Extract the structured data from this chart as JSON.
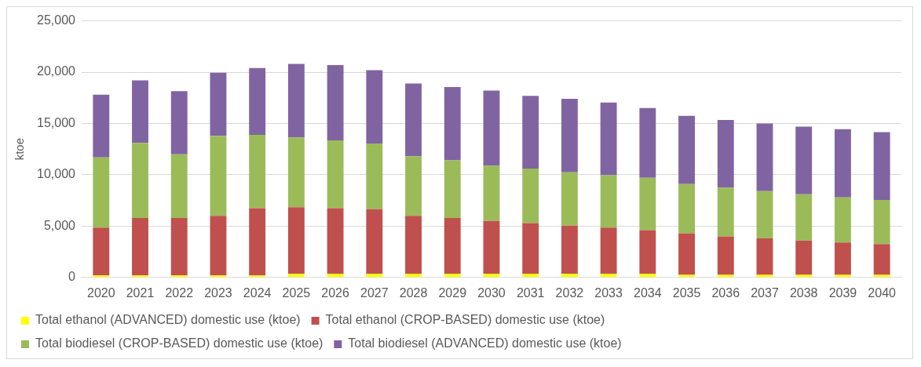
{
  "chart_data": {
    "type": "bar",
    "stacked": true,
    "ylabel": "ktoe",
    "categories": [
      "2020",
      "2021",
      "2022",
      "2023",
      "2024",
      "2025",
      "2026",
      "2027",
      "2028",
      "2029",
      "2030",
      "2031",
      "2032",
      "2033",
      "2034",
      "2035",
      "2036",
      "2037",
      "2038",
      "2039",
      "2040"
    ],
    "series": [
      {
        "name": "Total ethanol (ADVANCED) domestic use (ktoe)",
        "color": "#ffff00",
        "values": [
          200,
          200,
          200,
          200,
          200,
          350,
          350,
          350,
          350,
          350,
          350,
          350,
          350,
          350,
          350,
          250,
          250,
          250,
          250,
          250,
          250
        ]
      },
      {
        "name": "Total ethanol (CROP-BASED) domestic use (ktoe)",
        "color": "#c0504d",
        "values": [
          4650,
          5600,
          5600,
          5800,
          6550,
          6500,
          6400,
          6300,
          5650,
          5450,
          5150,
          4950,
          4700,
          4500,
          4250,
          4050,
          3750,
          3550,
          3350,
          3150,
          3000
        ]
      },
      {
        "name": "Total biodiesel (CROP-BASED) domestic use (ktoe)",
        "color": "#9bbb59",
        "values": [
          6850,
          7300,
          6200,
          7800,
          7150,
          6800,
          6600,
          6400,
          5800,
          5600,
          5400,
          5300,
          5200,
          5100,
          5100,
          4800,
          4750,
          4600,
          4500,
          4400,
          4300
        ]
      },
      {
        "name": "Total biodiesel (ADVANCED) domestic use (ktoe)",
        "color": "#8064a2",
        "values": [
          6100,
          6100,
          6150,
          6150,
          6500,
          7150,
          7350,
          7150,
          7100,
          7150,
          7300,
          7100,
          7150,
          7100,
          6800,
          6650,
          6600,
          6600,
          6600,
          6650,
          6600
        ]
      }
    ],
    "ylim": [
      0,
      25000
    ],
    "yticks": [
      {
        "value": 0,
        "label": "0"
      },
      {
        "value": 5000,
        "label": "5,000"
      },
      {
        "value": 10000,
        "label": "10,000"
      },
      {
        "value": 15000,
        "label": "15,000"
      },
      {
        "value": 20000,
        "label": "20,000"
      },
      {
        "value": 25000,
        "label": "25,000"
      }
    ],
    "grid": "y",
    "legend": "bottom"
  }
}
